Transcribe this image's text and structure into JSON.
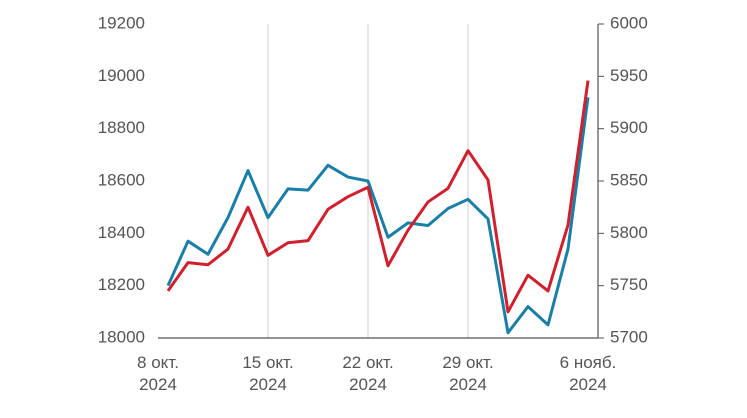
{
  "chart_data": {
    "type": "line",
    "categories": [
      "8 окт.\n2024",
      null,
      null,
      null,
      null,
      "15 окт.\n2024",
      null,
      null,
      null,
      null,
      "22 окт.\n2024",
      null,
      null,
      null,
      null,
      "29 окт.\n2024",
      null,
      null,
      null,
      null,
      null,
      "6 нояб.\n2024"
    ],
    "series": [
      {
        "color": "#1a7fa6",
        "values": [
          18200,
          18370,
          18320,
          18460,
          18640,
          18460,
          18570,
          18565,
          18660,
          18615,
          18600,
          18385,
          18440,
          18430,
          18495,
          18530,
          18455,
          18020,
          18120,
          18050,
          18340,
          18920
        ]
      },
      {
        "color": "#d0202e",
        "axis": "y2",
        "values": [
          5745,
          5772,
          5770,
          5785,
          5825,
          5779,
          5791,
          5793,
          5823,
          5835,
          5844,
          5769,
          5803,
          5830,
          5843,
          5879,
          5851,
          5725,
          5760,
          5745,
          5808,
          5946
        ]
      }
    ],
    "ylim": [
      18000,
      19200
    ],
    "yticks": [
      18000,
      18200,
      18400,
      18600,
      18800,
      19000,
      19200
    ],
    "y2lim": [
      5700,
      6000
    ],
    "y2ticks": [
      5700,
      5750,
      5800,
      5850,
      5900,
      5950,
      6000
    ],
    "xgrid": true
  }
}
